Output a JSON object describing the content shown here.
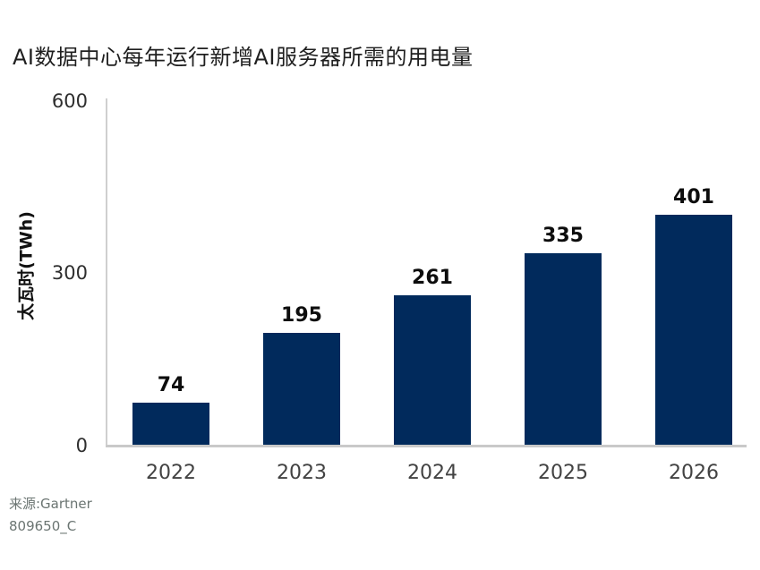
{
  "title": "AI数据中心每年运行新增AI服务器所需的用电量",
  "chart_data": {
    "type": "bar",
    "categories": [
      "2022",
      "2023",
      "2024",
      "2025",
      "2026"
    ],
    "values": [
      74,
      195,
      261,
      335,
      401
    ],
    "title": "AI数据中心每年运行新增AI服务器所需的用电量",
    "xlabel": "",
    "ylabel": "太瓦时(TWh)",
    "ylim": [
      0,
      600
    ],
    "yticks": [
      0,
      300,
      600
    ],
    "grid": false,
    "legend": null,
    "bar_color": "#012a5c",
    "value_label_position": "above-bar"
  },
  "y_axis": {
    "label": "太瓦时(TWh)",
    "ticks": [
      "600",
      "300",
      "0"
    ]
  },
  "axis_colors": {
    "line": "#c9c9c9"
  },
  "source": {
    "line1": "来源:Gartner",
    "line2": "809650_C"
  }
}
